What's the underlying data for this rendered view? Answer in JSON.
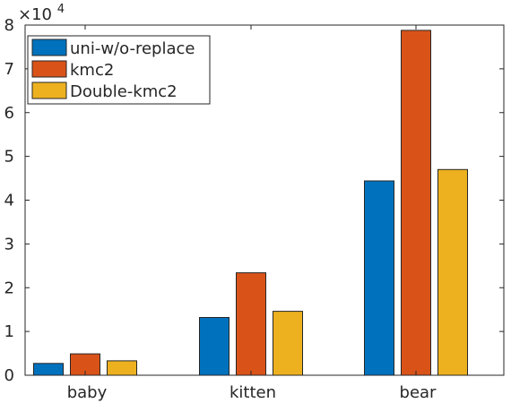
{
  "chart_data": {
    "type": "bar",
    "categories": [
      "baby",
      "kitten",
      "bear"
    ],
    "series": [
      {
        "name": "uni-w/o-replace",
        "values": [
          0.27,
          1.32,
          4.44
        ],
        "color": "#0072BD"
      },
      {
        "name": "kmc2",
        "values": [
          0.49,
          2.34,
          7.88
        ],
        "color": "#D95319"
      },
      {
        "name": "Double-kmc2",
        "values": [
          0.33,
          1.46,
          4.7
        ],
        "color": "#EDB120"
      }
    ],
    "ylim": [
      0,
      8
    ],
    "yticks": [
      "0",
      "1",
      "2",
      "3",
      "4",
      "5",
      "6",
      "7",
      "8"
    ],
    "y_multiplier_base": "×10",
    "y_multiplier_exp": "4",
    "legend_placement": "top-left",
    "grid": false
  }
}
